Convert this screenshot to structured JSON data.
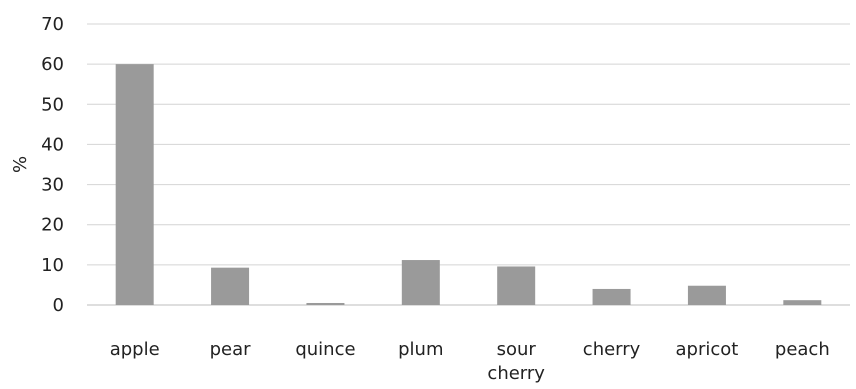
{
  "chart_data": {
    "type": "bar",
    "title": "",
    "xlabel": "",
    "ylabel": "%",
    "ylim": [
      0,
      70
    ],
    "yticks": [
      0,
      10,
      20,
      30,
      40,
      50,
      60,
      70
    ],
    "grid": true,
    "legend": "none",
    "categories": [
      "apple",
      "pear",
      "quince",
      "plum",
      "sour cherry",
      "cherry",
      "apricot",
      "peach"
    ],
    "category_lines": [
      [
        "apple"
      ],
      [
        "pear"
      ],
      [
        "quince"
      ],
      [
        "plum"
      ],
      [
        "sour",
        "cherry"
      ],
      [
        "cherry"
      ],
      [
        "apricot"
      ],
      [
        "peach"
      ]
    ],
    "series": [
      {
        "values": [
          60,
          9.3,
          0.5,
          11.2,
          9.6,
          4.0,
          4.8,
          1.2
        ],
        "color": "#9a9a9a"
      }
    ]
  }
}
